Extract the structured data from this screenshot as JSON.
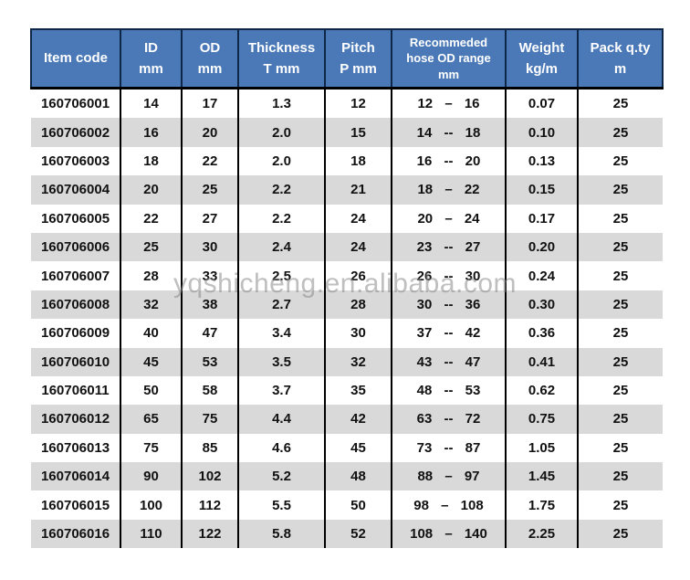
{
  "watermark": {
    "text": "yqshicheng.en.alibaba.com"
  },
  "colors": {
    "header_bg": "#4b79b7",
    "header_text": "#ffffff",
    "header_border": "#0f2746",
    "grid_line": "#000000",
    "row_stripe": "#d9d9d9",
    "watermark": "#8c8c8c"
  },
  "table": {
    "headers": [
      {
        "name": "item-code",
        "lines": [
          "Item code"
        ]
      },
      {
        "name": "id",
        "lines": [
          "ID",
          "mm"
        ]
      },
      {
        "name": "od",
        "lines": [
          "OD",
          "mm"
        ]
      },
      {
        "name": "thickness",
        "lines": [
          "Thickness",
          "T mm"
        ]
      },
      {
        "name": "pitch",
        "lines": [
          "Pitch",
          "P mm"
        ]
      },
      {
        "name": "hose-od-range",
        "lines": [
          "Recommeded",
          "hose OD range",
          "mm"
        ]
      },
      {
        "name": "weight",
        "lines": [
          "Weight",
          "kg/m"
        ]
      },
      {
        "name": "pack-qty",
        "lines": [
          "Pack q.ty",
          "m"
        ]
      }
    ],
    "rows": [
      [
        "160706001",
        "14",
        "17",
        "1.3",
        "12",
        "12 – 16",
        "0.07",
        "25"
      ],
      [
        "160706002",
        "16",
        "20",
        "2.0",
        "15",
        "14 -- 18",
        "0.10",
        "25"
      ],
      [
        "160706003",
        "18",
        "22",
        "2.0",
        "18",
        "16 -- 20",
        "0.13",
        "25"
      ],
      [
        "160706004",
        "20",
        "25",
        "2.2",
        "21",
        "18 – 22",
        "0.15",
        "25"
      ],
      [
        "160706005",
        "22",
        "27",
        "2.2",
        "24",
        "20 – 24",
        "0.17",
        "25"
      ],
      [
        "160706006",
        "25",
        "30",
        "2.4",
        "24",
        "23 -- 27",
        "0.20",
        "25"
      ],
      [
        "160706007",
        "28",
        "33",
        "2.5",
        "26",
        "26 -- 30",
        "0.24",
        "25"
      ],
      [
        "160706008",
        "32",
        "38",
        "2.7",
        "28",
        "30 -- 36",
        "0.30",
        "25"
      ],
      [
        "160706009",
        "40",
        "47",
        "3.4",
        "30",
        "37 -- 42",
        "0.36",
        "25"
      ],
      [
        "160706010",
        "45",
        "53",
        "3.5",
        "32",
        "43 -- 47",
        "0.41",
        "25"
      ],
      [
        "160706011",
        "50",
        "58",
        "3.7",
        "35",
        "48 -- 53",
        "0.62",
        "25"
      ],
      [
        "160706012",
        "65",
        "75",
        "4.4",
        "42",
        "63 -- 72",
        "0.75",
        "25"
      ],
      [
        "160706013",
        "75",
        "85",
        "4.6",
        "45",
        "73 -- 87",
        "1.05",
        "25"
      ],
      [
        "160706014",
        "90",
        "102",
        "5.2",
        "48",
        "88 – 97",
        "1.45",
        "25"
      ],
      [
        "160706015",
        "100",
        "112",
        "5.5",
        "50",
        "98 – 108",
        "1.75",
        "25"
      ],
      [
        "160706016",
        "110",
        "122",
        "5.8",
        "52",
        "108 – 140",
        "2.25",
        "25"
      ]
    ]
  }
}
